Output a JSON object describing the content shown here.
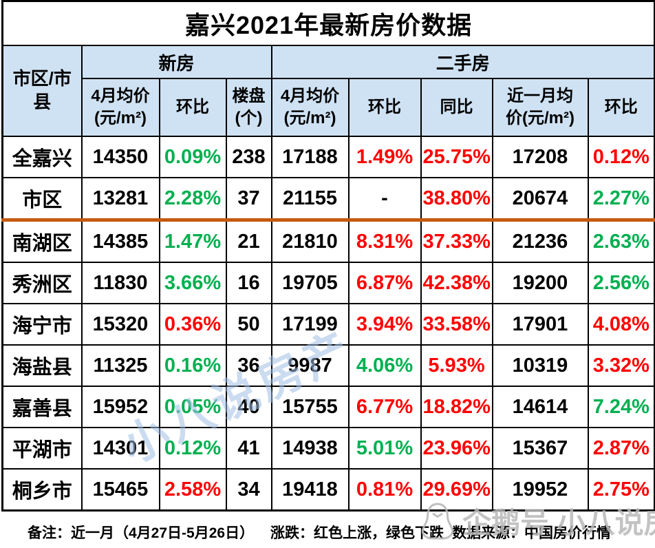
{
  "title": "嘉兴2021年最新房价数据",
  "colors": {
    "up": "#ff0000",
    "down": "#00b050",
    "neutral": "#000000",
    "header_bg": "#cfe2f3",
    "divider": "#c55a11",
    "watermark_blue": "rgba(160,190,228,0.55)",
    "watermark_gray": "rgba(185,185,185,0.85)"
  },
  "chart_data": {
    "type": "table",
    "title": "嘉兴2021年最新房价数据",
    "corner_header": "市区/市县",
    "column_groups": [
      {
        "label": "新房",
        "span": 3
      },
      {
        "label": "二手房",
        "span": 5
      }
    ],
    "columns": [
      "4月均价\n(元/m²)",
      "环比",
      "楼盘\n(个)",
      "4月均价\n(元/m²)",
      "环比",
      "同比",
      "近一月均\n价(元/m²)",
      "环比"
    ],
    "legend_note": "红色上涨，绿色下跌",
    "rows": [
      {
        "label": "全嘉兴",
        "divider": false,
        "cells": [
          {
            "v": "14350",
            "t": "neutral"
          },
          {
            "v": "0.09%",
            "t": "down"
          },
          {
            "v": "238",
            "t": "neutral"
          },
          {
            "v": "17188",
            "t": "neutral"
          },
          {
            "v": "1.49%",
            "t": "up"
          },
          {
            "v": "25.75%",
            "t": "up"
          },
          {
            "v": "17208",
            "t": "neutral"
          },
          {
            "v": "0.12%",
            "t": "up"
          }
        ]
      },
      {
        "label": "市区",
        "divider": true,
        "cells": [
          {
            "v": "13281",
            "t": "neutral"
          },
          {
            "v": "2.28%",
            "t": "down"
          },
          {
            "v": "37",
            "t": "neutral"
          },
          {
            "v": "21155",
            "t": "neutral"
          },
          {
            "v": "-",
            "t": "neutral"
          },
          {
            "v": "38.80%",
            "t": "up"
          },
          {
            "v": "20674",
            "t": "neutral"
          },
          {
            "v": "2.27%",
            "t": "down"
          }
        ]
      },
      {
        "label": "南湖区",
        "divider": false,
        "cells": [
          {
            "v": "14385",
            "t": "neutral"
          },
          {
            "v": "1.47%",
            "t": "down"
          },
          {
            "v": "21",
            "t": "neutral"
          },
          {
            "v": "21810",
            "t": "neutral"
          },
          {
            "v": "8.31%",
            "t": "up"
          },
          {
            "v": "37.33%",
            "t": "up"
          },
          {
            "v": "21236",
            "t": "neutral"
          },
          {
            "v": "2.63%",
            "t": "down"
          }
        ]
      },
      {
        "label": "秀洲区",
        "divider": false,
        "cells": [
          {
            "v": "11830",
            "t": "neutral"
          },
          {
            "v": "3.66%",
            "t": "down"
          },
          {
            "v": "16",
            "t": "neutral"
          },
          {
            "v": "19705",
            "t": "neutral"
          },
          {
            "v": "6.87%",
            "t": "up"
          },
          {
            "v": "42.38%",
            "t": "up"
          },
          {
            "v": "19200",
            "t": "neutral"
          },
          {
            "v": "2.56%",
            "t": "down"
          }
        ]
      },
      {
        "label": "海宁市",
        "divider": false,
        "cells": [
          {
            "v": "15320",
            "t": "neutral"
          },
          {
            "v": "0.36%",
            "t": "up"
          },
          {
            "v": "50",
            "t": "neutral"
          },
          {
            "v": "17199",
            "t": "neutral"
          },
          {
            "v": "3.94%",
            "t": "up"
          },
          {
            "v": "33.58%",
            "t": "up"
          },
          {
            "v": "17901",
            "t": "neutral"
          },
          {
            "v": "4.08%",
            "t": "up"
          }
        ]
      },
      {
        "label": "海盐县",
        "divider": false,
        "cells": [
          {
            "v": "11325",
            "t": "neutral"
          },
          {
            "v": "0.16%",
            "t": "down"
          },
          {
            "v": "36",
            "t": "neutral"
          },
          {
            "v": "9987",
            "t": "neutral"
          },
          {
            "v": "4.06%",
            "t": "down"
          },
          {
            "v": "5.93%",
            "t": "up"
          },
          {
            "v": "10319",
            "t": "neutral"
          },
          {
            "v": "3.32%",
            "t": "up"
          }
        ]
      },
      {
        "label": "嘉善县",
        "divider": false,
        "cells": [
          {
            "v": "15952",
            "t": "neutral"
          },
          {
            "v": "0.05%",
            "t": "down"
          },
          {
            "v": "40",
            "t": "neutral"
          },
          {
            "v": "15755",
            "t": "neutral"
          },
          {
            "v": "6.77%",
            "t": "up"
          },
          {
            "v": "18.82%",
            "t": "up"
          },
          {
            "v": "14614",
            "t": "neutral"
          },
          {
            "v": "7.24%",
            "t": "down"
          }
        ]
      },
      {
        "label": "平湖市",
        "divider": false,
        "cells": [
          {
            "v": "14301",
            "t": "neutral"
          },
          {
            "v": "0.12%",
            "t": "down"
          },
          {
            "v": "41",
            "t": "neutral"
          },
          {
            "v": "14938",
            "t": "neutral"
          },
          {
            "v": "5.01%",
            "t": "down"
          },
          {
            "v": "23.96%",
            "t": "up"
          },
          {
            "v": "15367",
            "t": "neutral"
          },
          {
            "v": "2.87%",
            "t": "up"
          }
        ]
      },
      {
        "label": "桐乡市",
        "divider": false,
        "cells": [
          {
            "v": "15465",
            "t": "neutral"
          },
          {
            "v": "2.58%",
            "t": "up"
          },
          {
            "v": "34",
            "t": "neutral"
          },
          {
            "v": "19418",
            "t": "neutral"
          },
          {
            "v": "0.81%",
            "t": "up"
          },
          {
            "v": "29.69%",
            "t": "up"
          },
          {
            "v": "19952",
            "t": "neutral"
          },
          {
            "v": "2.75%",
            "t": "up"
          }
        ]
      }
    ]
  },
  "footer": {
    "note": "备注：近一月（4月27日-5月26日）",
    "legend": "涨跌：红色上涨，绿色下跌",
    "source": "数据来源：中国房价行情"
  },
  "watermarks": {
    "diagonal": "小八说房产",
    "account": "企鹅号 小八说房产"
  }
}
